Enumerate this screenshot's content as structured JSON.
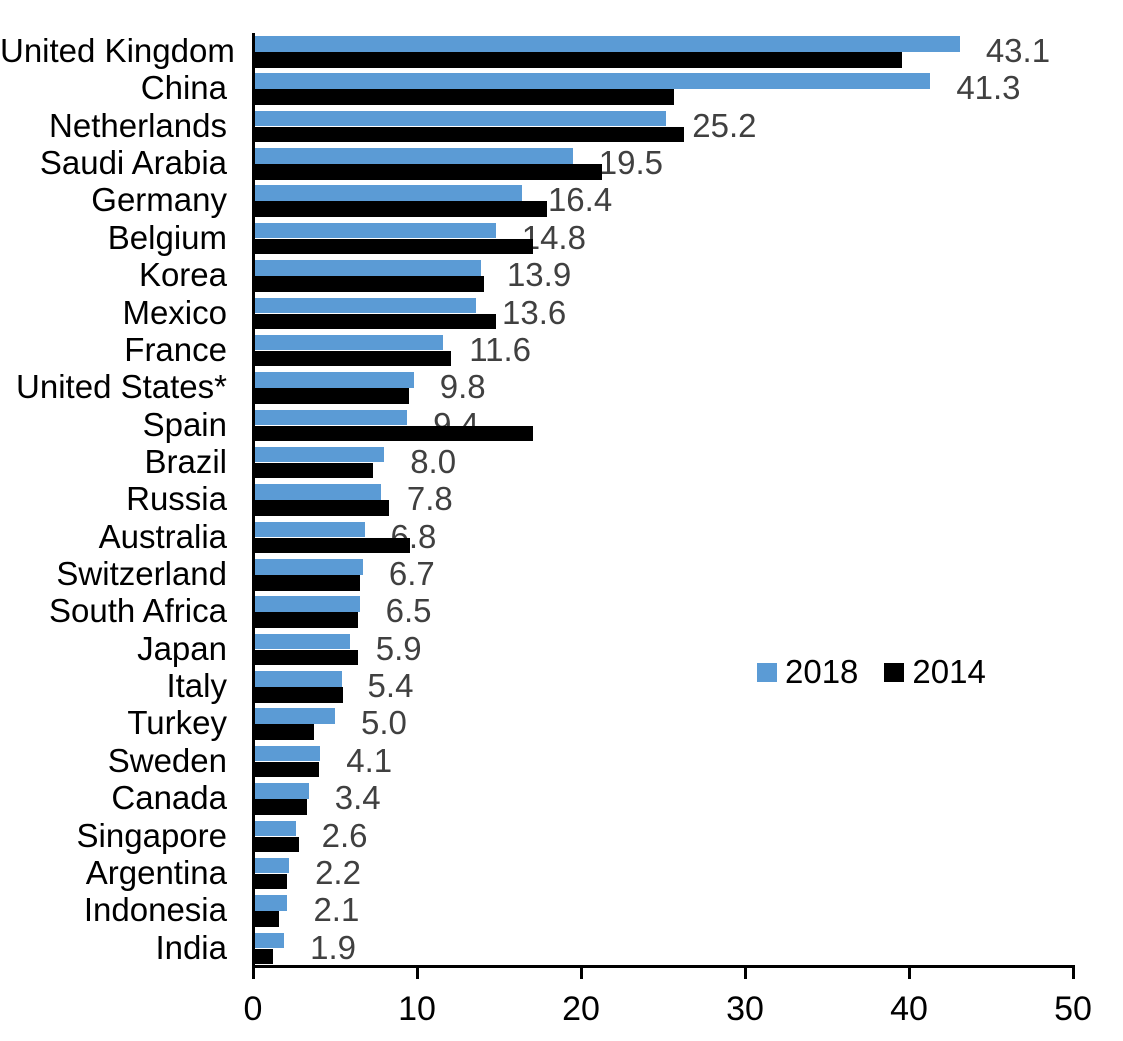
{
  "chart_data": {
    "type": "bar",
    "orientation": "horizontal",
    "title": "",
    "categories": [
      "United Kingdom",
      "China",
      "Netherlands",
      "Saudi Arabia",
      "Germany",
      "Belgium",
      "Korea",
      "Mexico",
      "France",
      "United States*",
      "Spain",
      "Brazil",
      "Russia",
      "Australia",
      "Switzerland",
      "South Africa",
      "Japan",
      "Italy",
      "Turkey",
      "Sweden",
      "Canada",
      "Singapore",
      "Argentina",
      "Indonesia",
      "India"
    ],
    "series": [
      {
        "name": "2018",
        "color": "#5B9BD5",
        "values": [
          43.1,
          41.3,
          25.2,
          19.5,
          16.4,
          14.8,
          13.9,
          13.6,
          11.6,
          9.8,
          9.4,
          8.0,
          7.8,
          6.8,
          6.7,
          6.5,
          5.9,
          5.4,
          5.0,
          4.1,
          3.4,
          2.6,
          2.2,
          2.1,
          1.9
        ]
      },
      {
        "name": "2014",
        "color": "#000000",
        "values": [
          39.6,
          25.7,
          26.3,
          21.3,
          17.9,
          17.1,
          14.1,
          14.8,
          12.1,
          9.5,
          17.1,
          7.3,
          8.3,
          9.6,
          6.5,
          6.4,
          6.4,
          5.5,
          3.7,
          4.0,
          3.3,
          2.8,
          2.1,
          1.6,
          1.2
        ]
      }
    ],
    "value_labels": [
      "43.1",
      "41.3",
      "25.2",
      "19.5",
      "16.4",
      "14.8",
      "13.9",
      "13.6",
      "11.6",
      "9.8",
      "9.4",
      "8.0",
      "7.8",
      "6.8",
      "6.7",
      "6.5",
      "5.9",
      "5.4",
      "5.0",
      "4.1",
      "3.4",
      "2.6",
      "2.2",
      "2.1",
      "1.9"
    ],
    "xlabel": "",
    "ylabel": "",
    "xlim": [
      0,
      50
    ],
    "x_ticks": [
      0,
      10,
      20,
      30,
      40,
      50
    ],
    "grid": false,
    "legend_position": "middle-right",
    "value_labels_series": "2018"
  },
  "colors": {
    "series_2018": "#5B9BD5",
    "series_2014": "#000000",
    "value_label": "#404040",
    "axis": "#000000",
    "background": "#ffffff"
  },
  "legend": {
    "items": [
      {
        "label": "2018",
        "color": "#5B9BD5"
      },
      {
        "label": "2014",
        "color": "#000000"
      }
    ]
  }
}
